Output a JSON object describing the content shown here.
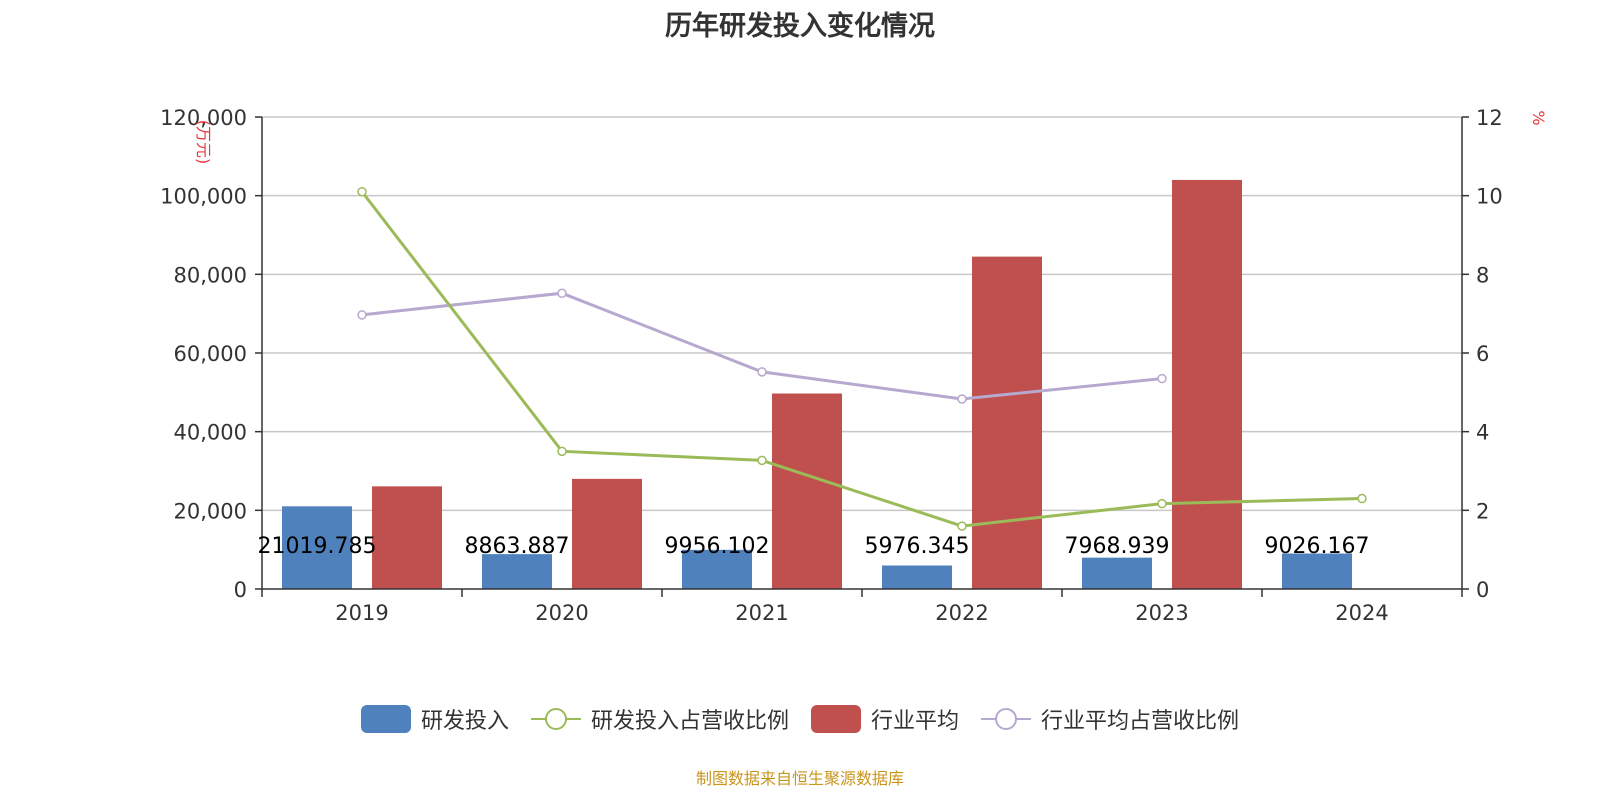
{
  "title": "历年研发投入变化情况",
  "source": "制图数据来自恒生聚源数据库",
  "colors": {
    "rd": "#4f81bd",
    "industry": "#c0504d",
    "rd_ratio": "#9bbb59",
    "industry_ratio": "#b7a8cf",
    "unit": "#e8383d",
    "source": "#c8961e"
  },
  "chart_data": {
    "type": "bar",
    "title": "历年研发投入变化情况",
    "categories": [
      "2019",
      "2020",
      "2021",
      "2022",
      "2023",
      "2024"
    ],
    "y_left": {
      "unit": "万元",
      "range": [
        0,
        120000
      ],
      "ticks": [
        "0",
        "20,000",
        "40,000",
        "60,000",
        "80,000",
        "100,000",
        "120,000"
      ]
    },
    "y_right": {
      "unit": "%",
      "range": [
        0,
        12
      ],
      "ticks": [
        "0",
        "2",
        "4",
        "6",
        "8",
        "10",
        "12"
      ]
    },
    "grid": true,
    "legend_position": "bottom",
    "series": [
      {
        "name": "研发投入",
        "type": "bar",
        "axis": "left",
        "color": "#4f81bd",
        "values": [
          21019.785,
          8863.887,
          9956.102,
          5976.345,
          7968.939,
          9026.167
        ],
        "labels": [
          "21019.785",
          "8863.887",
          "9956.102",
          "5976.345",
          "7968.939",
          "9026.167"
        ]
      },
      {
        "name": "研发投入占营收比例",
        "type": "line",
        "axis": "right",
        "color": "#9bbb59",
        "values": [
          10.1,
          3.5,
          3.27,
          1.6,
          2.17,
          2.3
        ]
      },
      {
        "name": "行业平均",
        "type": "bar",
        "axis": "left",
        "color": "#c0504d",
        "values": [
          26100,
          28000,
          49700,
          84500,
          104000,
          null
        ]
      },
      {
        "name": "行业平均占营收比例",
        "type": "line",
        "axis": "right",
        "color": "#b7a8cf",
        "values": [
          6.97,
          7.52,
          5.52,
          4.83,
          5.35,
          null
        ]
      }
    ]
  }
}
